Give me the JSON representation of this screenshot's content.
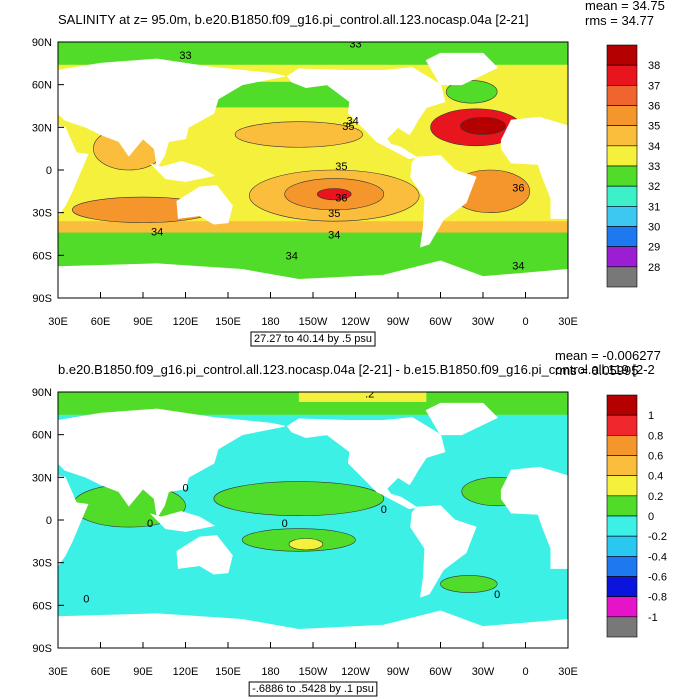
{
  "panels": [
    {
      "title": "SALINITY at z=  95.0m, b.e20.B1850.f09_g16.pi_control.all.123.nocasp.04a [2-21]",
      "stats": [
        "mean = 34.75",
        "rms = 34.77"
      ],
      "range_note": "27.27 to 40.14 by .5 psu",
      "colorbar": {
        "labels": [
          38,
          37,
          36,
          35,
          34,
          33,
          32,
          31,
          30,
          29,
          28
        ],
        "colors": [
          "#b40000",
          "#e8141e",
          "#f0642d",
          "#f5962d",
          "#fabe3c",
          "#f5f03c",
          "#50dc28",
          "#3cf0c8",
          "#3cc8f0",
          "#1e78f0",
          "#9b1ed2",
          "#787878"
        ]
      },
      "contour_labels": [
        "33",
        "33",
        "35",
        "34",
        "35",
        "36",
        "35",
        "34",
        "34",
        "34",
        "36",
        "34"
      ]
    },
    {
      "title": "b.e20.B1850.f09_g16.pi_control.all.123.nocasp.04a [2-21] - b.e15.B1850.f09_g16.pi_control.all.119 [2-2",
      "stats": [
        "mean = -0.006277",
        "rms = 0.05995"
      ],
      "range_note": "-.6886 to .5428 by .1 psu",
      "colorbar": {
        "labels": [
          1,
          0.8,
          0.6,
          0.4,
          0.2,
          0,
          -0.2,
          -0.4,
          -0.6,
          -0.8,
          -1
        ],
        "colors": [
          "#b40000",
          "#f0282d",
          "#f5962d",
          "#fabe3c",
          "#f5f03c",
          "#50dc28",
          "#3cf0e6",
          "#28c8f0",
          "#1e78f0",
          "#0a14dc",
          "#e614c8",
          "#787878"
        ]
      },
      "contour_labels": [
        ".2",
        "0",
        "0",
        "0",
        "0",
        "0",
        "0"
      ]
    }
  ],
  "lat_labels": [
    "90N",
    "60N",
    "30N",
    "0",
    "30S",
    "60S",
    "90S"
  ],
  "lon_labels": [
    "30E",
    "60E",
    "90E",
    "120E",
    "150E",
    "180",
    "150W",
    "120W",
    "90W",
    "60W",
    "30W",
    "0",
    "30E"
  ]
}
